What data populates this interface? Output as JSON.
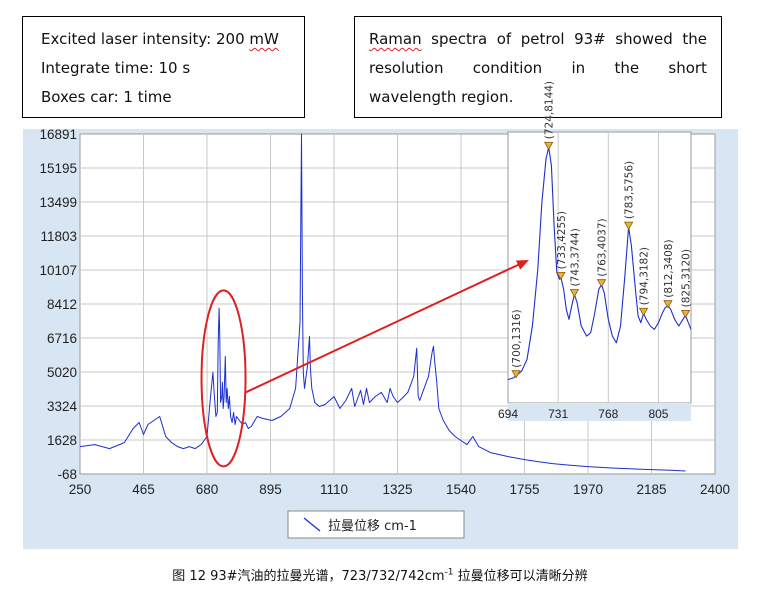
{
  "notes": {
    "left": {
      "line1_prefix": "Excited laser intensity: 200 ",
      "line1_unit": "mW",
      "line2": "Integrate time: 10 s",
      "line3": "Boxes car: 1 time"
    },
    "right": {
      "line1": [
        "Raman",
        "spectra",
        "of",
        "petrol",
        "93#",
        "showed",
        "the"
      ],
      "line2": [
        "resolution",
        "condition",
        "in",
        "the",
        "short"
      ],
      "line3": "wavelength region."
    }
  },
  "caption": {
    "prefix": "图 12 93#汽油的拉曼光谱，723/732/742cm",
    "sup": "-1",
    "suffix": " 拉曼位移可以清晰分辨"
  },
  "colors": {
    "series": "#1c2fd0",
    "highlight": "#e02020",
    "panel": "#d8e6f3",
    "marker_fill": "#e8b340",
    "marker_stroke": "#8a5a00"
  },
  "chart_data": [
    {
      "type": "line",
      "title": "",
      "xlabel": "",
      "ylabel": "",
      "xlim": [
        250,
        2400
      ],
      "ylim": [
        -68,
        16891
      ],
      "xticks": [
        "250",
        "465",
        "680",
        "895",
        "1110",
        "1325",
        "1540",
        "1755",
        "1970",
        "2185",
        "2400"
      ],
      "yticks": [
        "-68",
        "1628",
        "3324",
        "5020",
        "6716",
        "8412",
        "10107",
        "11803",
        "13499",
        "15195",
        "16891"
      ],
      "grid": true,
      "legend": {
        "position": "bottom",
        "entries": [
          {
            "label": "拉曼位移 cm-1"
          }
        ]
      },
      "series": [
        {
          "name": "拉曼位移 cm-1",
          "x": [
            250,
            300,
            350,
            400,
            430,
            450,
            465,
            480,
            500,
            520,
            540,
            560,
            580,
            600,
            620,
            640,
            660,
            680,
            690,
            700,
            705,
            710,
            715,
            718,
            721,
            723,
            726,
            730,
            732,
            735,
            738,
            742,
            745,
            748,
            752,
            756,
            760,
            765,
            770,
            775,
            780,
            790,
            800,
            810,
            820,
            830,
            850,
            870,
            900,
            930,
            960,
            980,
            995,
            1000,
            1003,
            1006,
            1010,
            1020,
            1027,
            1030,
            1035,
            1045,
            1060,
            1080,
            1110,
            1130,
            1150,
            1170,
            1180,
            1200,
            1210,
            1220,
            1230,
            1250,
            1270,
            1290,
            1300,
            1310,
            1325,
            1340,
            1360,
            1380,
            1390,
            1395,
            1400,
            1410,
            1430,
            1442,
            1447,
            1450,
            1458,
            1465,
            1480,
            1500,
            1520,
            1540,
            1560,
            1580,
            1600,
            1640,
            1700,
            1755,
            1800,
            1850,
            1900,
            1970,
            2050,
            2100,
            2185,
            2250,
            2300
          ],
          "values": [
            1300,
            1400,
            1200,
            1500,
            2200,
            2500,
            1900,
            2400,
            2600,
            2800,
            1800,
            1500,
            1300,
            1200,
            1300,
            1200,
            1400,
            1800,
            3500,
            5000,
            3800,
            2800,
            3000,
            6500,
            8200,
            7000,
            3500,
            3800,
            4500,
            3200,
            3800,
            5800,
            3500,
            4200,
            3200,
            3800,
            2800,
            2500,
            3000,
            2400,
            2800,
            2600,
            2400,
            2500,
            2200,
            2300,
            2800,
            2700,
            2600,
            2800,
            3200,
            4200,
            7500,
            16891,
            9000,
            5000,
            4200,
            5300,
            6800,
            5200,
            4200,
            3500,
            3300,
            3400,
            3800,
            3200,
            3600,
            4200,
            3300,
            4100,
            3400,
            4200,
            3500,
            3800,
            4000,
            3500,
            4200,
            3800,
            3500,
            3700,
            4000,
            4800,
            6200,
            3800,
            3600,
            4000,
            4800,
            6000,
            6300,
            5700,
            4500,
            3200,
            2600,
            2100,
            1800,
            1600,
            1400,
            1800,
            1300,
            1000,
            800,
            650,
            550,
            450,
            380,
            300,
            230,
            200,
            150,
            120,
            80
          ]
        }
      ]
    },
    {
      "type": "line",
      "title": "",
      "xlim": [
        694,
        829
      ],
      "xticks": [
        "694",
        "731",
        "768",
        "805"
      ],
      "grid": true,
      "annotations": [
        {
          "label": "(700,1316)",
          "x": 700,
          "y": 1316
        },
        {
          "label": "(724,8144)",
          "x": 724,
          "y": 8144
        },
        {
          "label": "(733,4255)",
          "x": 733,
          "y": 4255
        },
        {
          "label": "(743,3744)",
          "x": 743,
          "y": 3744
        },
        {
          "label": "(763,4037)",
          "x": 763,
          "y": 4037
        },
        {
          "label": "(783,5756)",
          "x": 783,
          "y": 5756
        },
        {
          "label": "(794,3182)",
          "x": 794,
          "y": 3182
        },
        {
          "label": "(812,3408)",
          "x": 812,
          "y": 3408
        },
        {
          "label": "(825,3120)",
          "x": 825,
          "y": 3120
        }
      ],
      "series": [
        {
          "x": [
            694,
            698,
            700,
            704,
            708,
            712,
            716,
            719,
            722,
            724,
            726,
            728,
            730,
            732,
            733,
            735,
            737,
            739,
            741,
            743,
            745,
            748,
            752,
            755,
            758,
            761,
            763,
            765,
            768,
            771,
            774,
            777,
            780,
            783,
            785,
            788,
            790,
            792,
            794,
            796,
            799,
            802,
            805,
            808,
            810,
            812,
            814,
            817,
            820,
            823,
            825,
            827,
            829
          ],
          "values": [
            1200,
            1250,
            1316,
            1450,
            1800,
            2800,
            4500,
            6500,
            7800,
            8144,
            7600,
            5800,
            4400,
            4200,
            4255,
            3900,
            3300,
            3000,
            3400,
            3744,
            3500,
            2800,
            2500,
            2600,
            3200,
            3900,
            4037,
            3800,
            3000,
            2500,
            2300,
            2800,
            4200,
            5756,
            5200,
            3900,
            3100,
            2900,
            3182,
            3000,
            2800,
            2700,
            2900,
            3200,
            3350,
            3408,
            3300,
            3000,
            2800,
            3000,
            3120,
            2900,
            2700
          ]
        }
      ]
    }
  ]
}
